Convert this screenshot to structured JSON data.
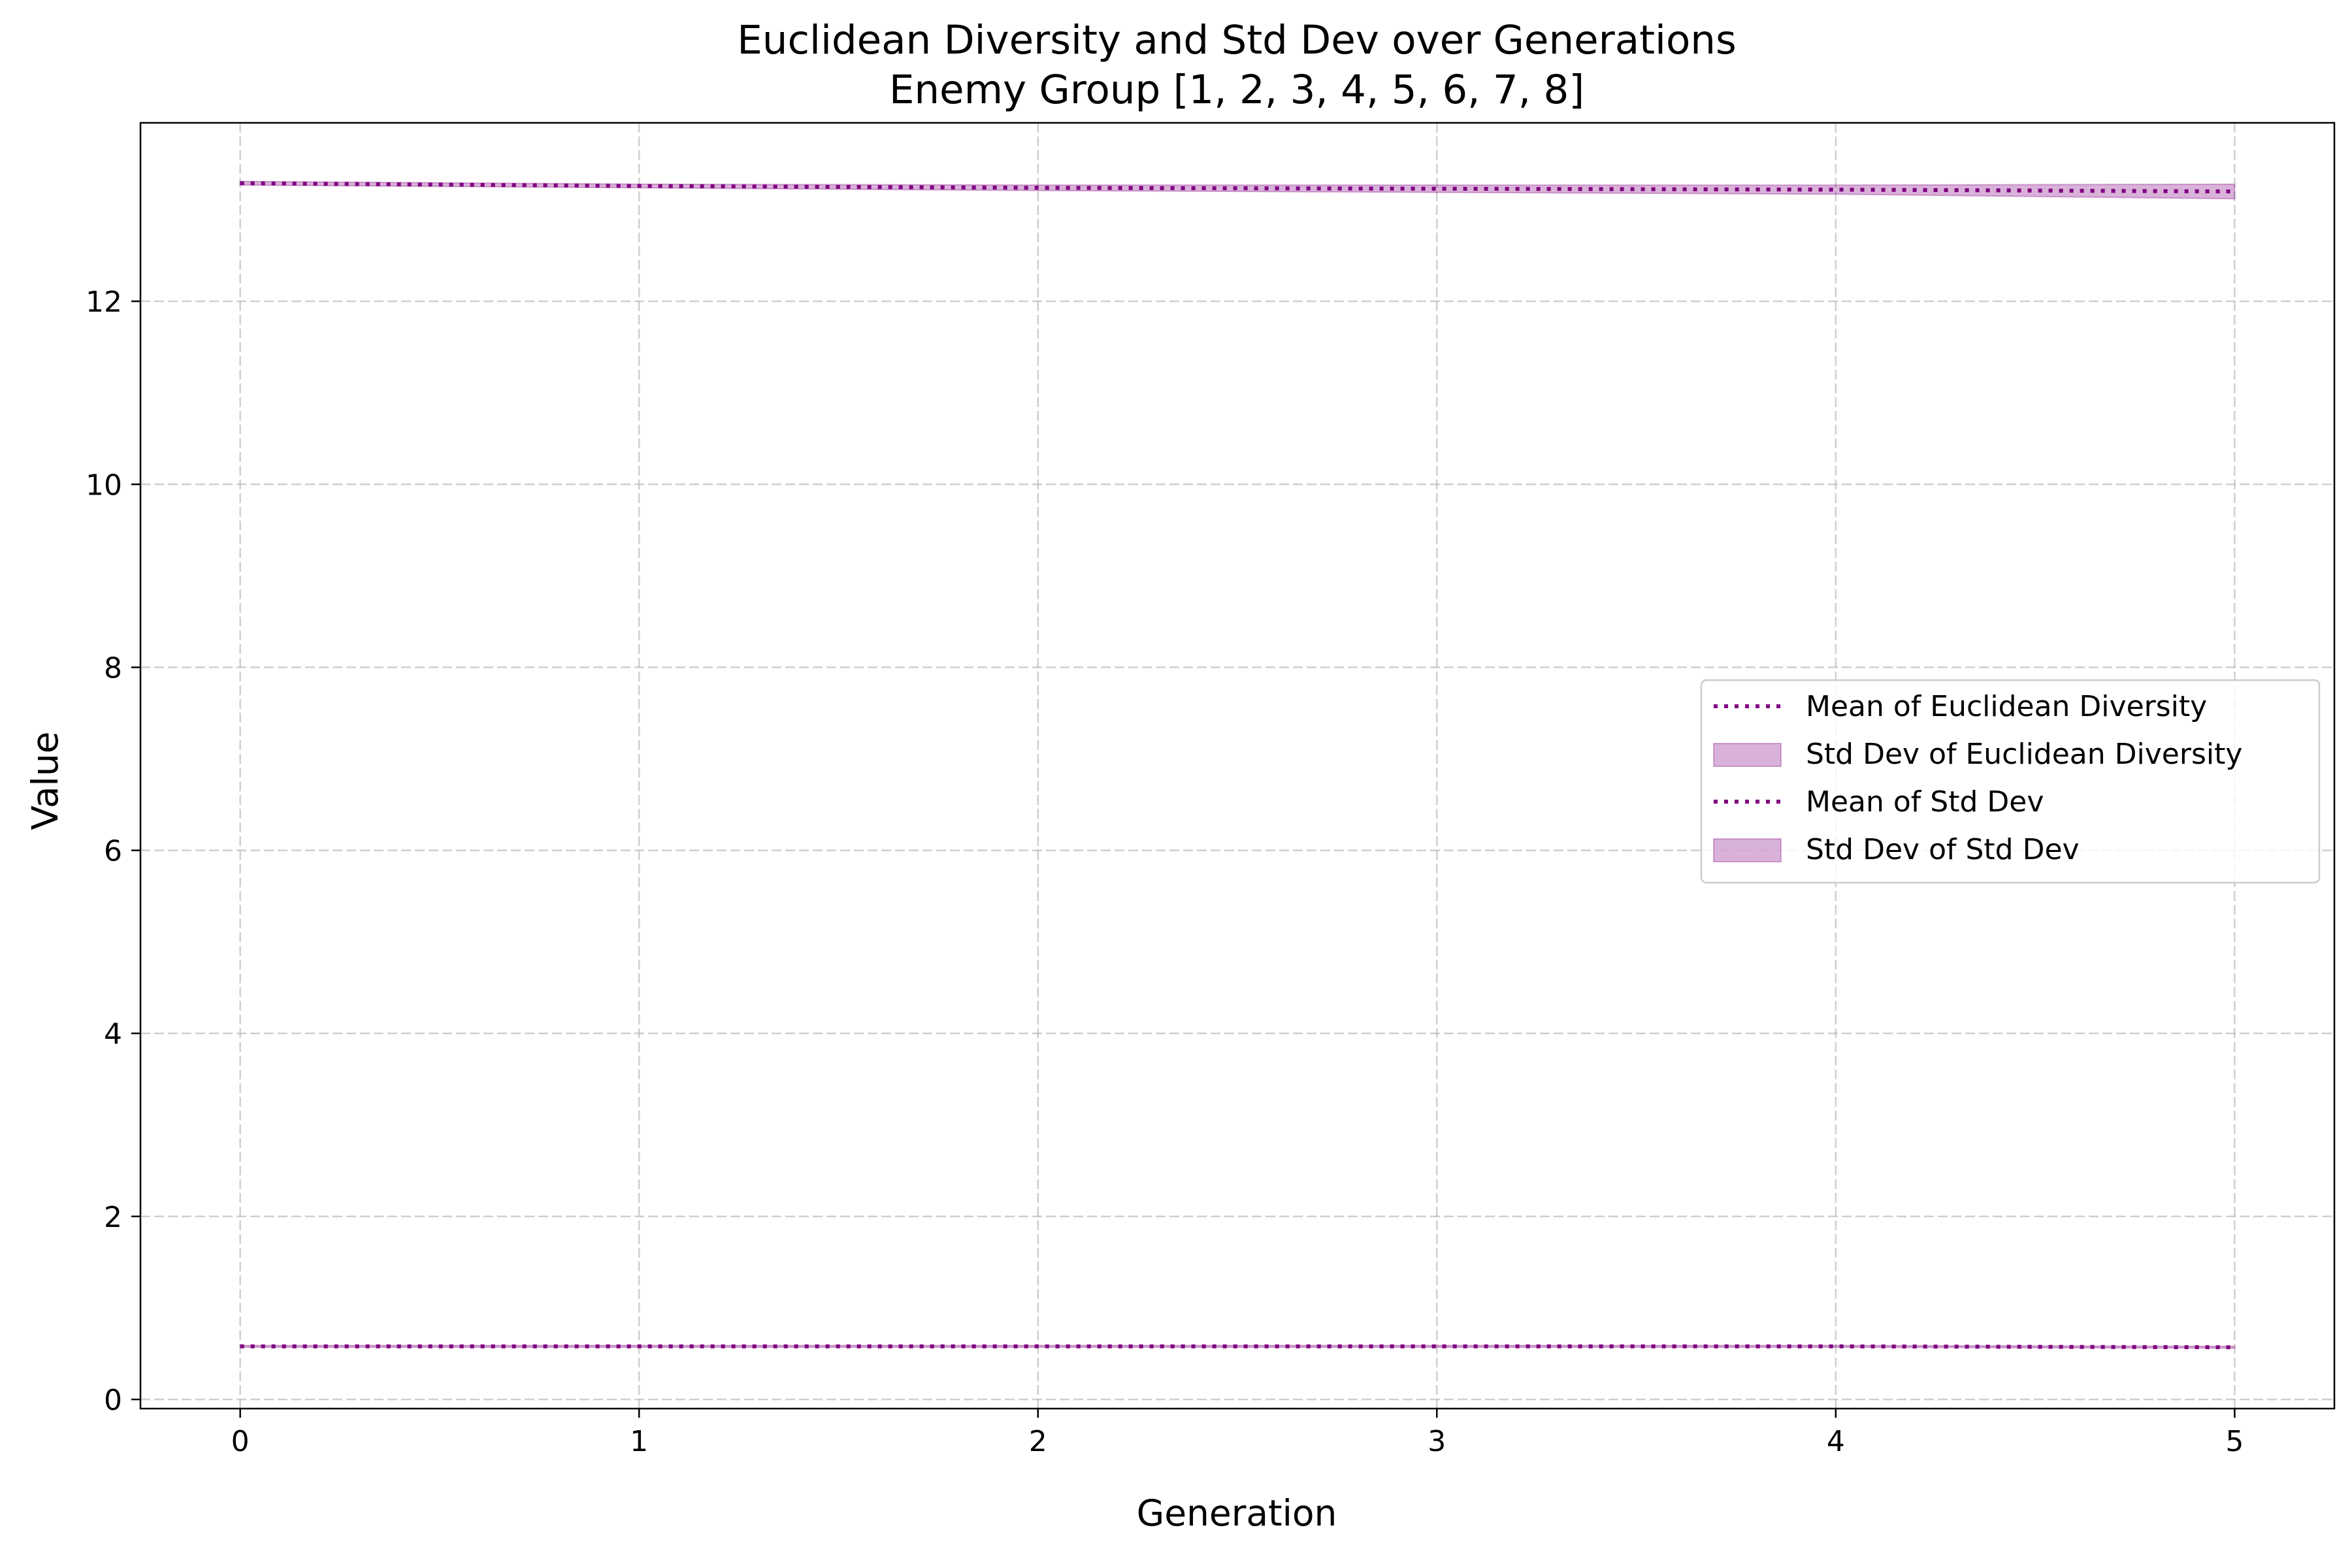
{
  "chart_data": {
    "type": "line",
    "title": "Euclidean Diversity and Std Dev over Generations",
    "subtitle": "Enemy Group [1, 2, 3, 4, 5, 6, 7, 8]",
    "xlabel": "Generation",
    "ylabel": "Value",
    "x": [
      0,
      1,
      2,
      3,
      4,
      5
    ],
    "xlim": [
      -0.25,
      5.25
    ],
    "ylim": [
      -0.1,
      13.95
    ],
    "xticks": [
      0,
      1,
      2,
      3,
      4,
      5
    ],
    "yticks": [
      0,
      2,
      4,
      6,
      8,
      10,
      12
    ],
    "grid": true,
    "legend_position": "center-right",
    "series": [
      {
        "name": "Mean of Euclidean Diversity",
        "kind": "line",
        "style": "dotted",
        "color": "#800080",
        "values": [
          13.29,
          13.26,
          13.24,
          13.23,
          13.22,
          13.2
        ]
      },
      {
        "name": "Std Dev of Euclidean Diversity",
        "kind": "band",
        "color": "#800080",
        "lower": [
          13.27,
          13.24,
          13.21,
          13.19,
          13.17,
          13.12
        ],
        "upper": [
          13.31,
          13.28,
          13.27,
          13.27,
          13.27,
          13.28
        ]
      },
      {
        "name": "Mean of Std Dev",
        "kind": "line",
        "style": "dotted",
        "color": "#800080",
        "values": [
          0.58,
          0.58,
          0.58,
          0.58,
          0.58,
          0.57
        ]
      },
      {
        "name": "Std Dev of Std Dev",
        "kind": "band",
        "color": "#800080",
        "lower": [
          0.57,
          0.57,
          0.57,
          0.57,
          0.57,
          0.56
        ],
        "upper": [
          0.59,
          0.59,
          0.59,
          0.59,
          0.59,
          0.58
        ]
      }
    ]
  }
}
